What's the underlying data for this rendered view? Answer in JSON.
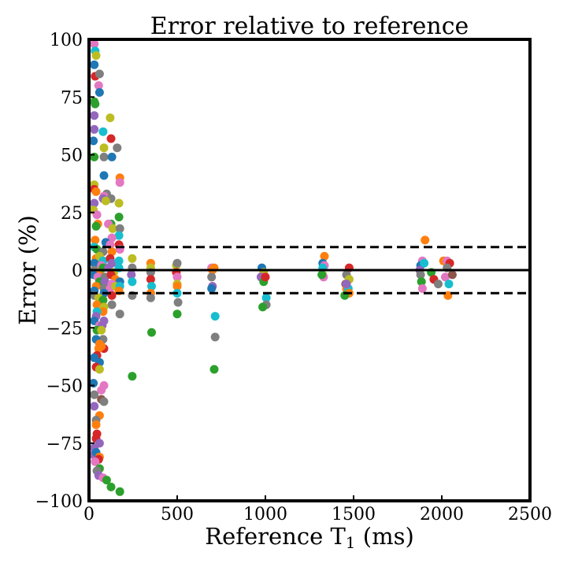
{
  "chart_data": {
    "type": "scatter",
    "title": "Error relative to reference",
    "xlabel": {
      "prefix": "Reference T",
      "subscript": "1",
      "suffix": " (ms)"
    },
    "ylabel": "Error (%)",
    "xlim": [
      0,
      2500
    ],
    "ylim": [
      -100,
      100
    ],
    "xticks": [
      0,
      500,
      1000,
      1500,
      2000,
      2500
    ],
    "xtick_labels": [
      "0",
      "500",
      "1000",
      "1500",
      "2000",
      "2500"
    ],
    "yticks": [
      100,
      75,
      50,
      25,
      0,
      -25,
      -50,
      -75,
      -100
    ],
    "ytick_labels": [
      "100",
      "75",
      "50",
      "25",
      "0",
      "−25",
      "−50",
      "−75",
      "−100"
    ],
    "grid": false,
    "reference_lines": [
      {
        "y": 0,
        "style": "solid"
      },
      {
        "y": 10,
        "style": "dashed"
      },
      {
        "y": -10,
        "style": "dashed"
      }
    ],
    "colors": [
      "#1f77b4",
      "#ff7f0e",
      "#2ca02c",
      "#d62728",
      "#9467bd",
      "#8c564b",
      "#e377c2",
      "#7f7f7f",
      "#bcbd22",
      "#17becf"
    ],
    "points": [
      [
        30,
        98,
        6
      ],
      [
        35,
        95,
        9
      ],
      [
        40,
        93,
        8
      ],
      [
        30,
        89,
        0
      ],
      [
        35,
        84,
        3
      ],
      [
        60,
        85,
        7
      ],
      [
        55,
        80,
        6
      ],
      [
        60,
        77,
        0
      ],
      [
        30,
        73,
        2
      ],
      [
        35,
        72,
        2
      ],
      [
        30,
        67,
        4
      ],
      [
        120,
        66,
        8
      ],
      [
        30,
        61,
        4
      ],
      [
        80,
        60,
        9
      ],
      [
        125,
        57,
        3
      ],
      [
        25,
        56,
        0
      ],
      [
        160,
        53,
        7
      ],
      [
        85,
        53,
        8
      ],
      [
        30,
        49,
        2
      ],
      [
        85,
        49,
        7
      ],
      [
        130,
        49,
        0
      ],
      [
        85,
        41,
        0
      ],
      [
        175,
        40,
        1
      ],
      [
        175,
        38,
        6
      ],
      [
        30,
        37,
        8
      ],
      [
        30,
        35,
        3
      ],
      [
        40,
        34,
        1
      ],
      [
        100,
        33,
        7
      ],
      [
        85,
        32,
        6
      ],
      [
        80,
        31,
        4
      ],
      [
        125,
        31,
        7
      ],
      [
        30,
        29,
        4
      ],
      [
        95,
        30,
        8
      ],
      [
        170,
        29,
        8
      ],
      [
        25,
        26,
        8
      ],
      [
        45,
        24,
        6
      ],
      [
        170,
        23,
        2
      ],
      [
        50,
        20,
        1
      ],
      [
        40,
        19,
        2
      ],
      [
        125,
        20,
        2
      ],
      [
        110,
        20,
        6
      ],
      [
        135,
        18,
        8
      ],
      [
        175,
        18,
        7
      ],
      [
        170,
        15,
        9
      ],
      [
        130,
        14,
        6
      ],
      [
        35,
        13,
        1
      ],
      [
        95,
        12,
        0
      ],
      [
        120,
        11,
        6
      ],
      [
        170,
        11,
        3
      ],
      [
        175,
        9,
        6
      ],
      [
        30,
        10,
        9
      ],
      [
        45,
        9,
        2
      ],
      [
        80,
        8,
        7
      ],
      [
        130,
        8,
        1
      ],
      [
        40,
        5,
        1
      ],
      [
        60,
        6,
        8
      ],
      [
        80,
        4,
        9
      ],
      [
        120,
        5,
        3
      ],
      [
        30,
        3,
        0
      ],
      [
        70,
        2,
        6
      ],
      [
        130,
        3,
        4
      ],
      [
        170,
        4,
        9
      ],
      [
        30,
        0,
        7
      ],
      [
        60,
        -1,
        1
      ],
      [
        80,
        1,
        2
      ],
      [
        110,
        1,
        4
      ],
      [
        140,
        -1,
        8
      ],
      [
        170,
        1,
        9
      ],
      [
        25,
        -2,
        0
      ],
      [
        50,
        -3,
        6
      ],
      [
        90,
        -3,
        7
      ],
      [
        125,
        -2,
        3
      ],
      [
        150,
        -4,
        1
      ],
      [
        60,
        -5,
        2
      ],
      [
        90,
        -5,
        4
      ],
      [
        130,
        -6,
        6
      ],
      [
        175,
        -5,
        0
      ],
      [
        40,
        -7,
        1
      ],
      [
        85,
        -8,
        7
      ],
      [
        120,
        -8,
        6
      ],
      [
        150,
        -7,
        8
      ],
      [
        175,
        -7,
        9
      ],
      [
        30,
        -9,
        0
      ],
      [
        85,
        -10,
        0
      ],
      [
        130,
        -11,
        3
      ],
      [
        170,
        -9,
        1
      ],
      [
        30,
        -11,
        7
      ],
      [
        55,
        -12,
        8
      ],
      [
        80,
        -13,
        2
      ],
      [
        130,
        -15,
        7
      ],
      [
        45,
        -15,
        1
      ],
      [
        85,
        -16,
        8
      ],
      [
        80,
        -18,
        1
      ],
      [
        45,
        -18,
        9
      ],
      [
        40,
        -20,
        4
      ],
      [
        175,
        -19,
        7
      ],
      [
        85,
        -22,
        4
      ],
      [
        30,
        -22,
        0
      ],
      [
        60,
        -24,
        6
      ],
      [
        75,
        -24,
        4
      ],
      [
        45,
        -26,
        2
      ],
      [
        70,
        -26,
        8
      ],
      [
        80,
        -30,
        7
      ],
      [
        40,
        -30,
        0
      ],
      [
        60,
        -32,
        1
      ],
      [
        85,
        -34,
        3
      ],
      [
        55,
        -34,
        1
      ],
      [
        70,
        -33,
        1
      ],
      [
        45,
        -37,
        3
      ],
      [
        30,
        -38,
        0
      ],
      [
        60,
        -40,
        0
      ],
      [
        40,
        -42,
        3
      ],
      [
        60,
        -43,
        8
      ],
      [
        25,
        -49,
        0
      ],
      [
        85,
        -50,
        6
      ],
      [
        70,
        -52,
        6
      ],
      [
        30,
        -54,
        7
      ],
      [
        70,
        -56,
        5
      ],
      [
        85,
        -57,
        7
      ],
      [
        30,
        -59,
        4
      ],
      [
        60,
        -63,
        1
      ],
      [
        40,
        -65,
        7
      ],
      [
        40,
        -67,
        1
      ],
      [
        45,
        -71,
        3
      ],
      [
        40,
        -73,
        3
      ],
      [
        60,
        -75,
        4
      ],
      [
        30,
        -77,
        4
      ],
      [
        25,
        -80,
        4
      ],
      [
        40,
        -79,
        0
      ],
      [
        60,
        -81,
        1
      ],
      [
        55,
        -82,
        3
      ],
      [
        35,
        -83,
        6
      ],
      [
        60,
        -86,
        2
      ],
      [
        45,
        -87,
        7
      ],
      [
        55,
        -89,
        4
      ],
      [
        80,
        -90,
        6
      ],
      [
        100,
        -91,
        2
      ],
      [
        125,
        -94,
        2
      ],
      [
        175,
        -96,
        2
      ],
      [
        245,
        5,
        8
      ],
      [
        245,
        1,
        7
      ],
      [
        240,
        -2,
        4
      ],
      [
        245,
        -5,
        9
      ],
      [
        245,
        -11,
        7
      ],
      [
        245,
        -46,
        2
      ],
      [
        350,
        3,
        1
      ],
      [
        350,
        1,
        8
      ],
      [
        350,
        -1,
        7
      ],
      [
        350,
        -4,
        3
      ],
      [
        355,
        -7,
        9
      ],
      [
        350,
        -10,
        1
      ],
      [
        350,
        -12,
        7
      ],
      [
        355,
        -27,
        2
      ],
      [
        495,
        2,
        8
      ],
      [
        500,
        3,
        7
      ],
      [
        495,
        -1,
        3
      ],
      [
        500,
        -3,
        6
      ],
      [
        500,
        -6,
        8
      ],
      [
        500,
        -7,
        1
      ],
      [
        500,
        -10,
        9
      ],
      [
        505,
        -14,
        7
      ],
      [
        500,
        -19,
        2
      ],
      [
        695,
        1,
        6
      ],
      [
        700,
        0,
        1
      ],
      [
        695,
        -3,
        7
      ],
      [
        700,
        -7,
        4
      ],
      [
        695,
        -8,
        0
      ],
      [
        710,
        1,
        1
      ],
      [
        715,
        -20,
        9
      ],
      [
        715,
        -29,
        7
      ],
      [
        710,
        -43,
        2
      ],
      [
        980,
        1,
        0
      ],
      [
        990,
        -1,
        8
      ],
      [
        975,
        -3,
        4
      ],
      [
        990,
        -5,
        2
      ],
      [
        1000,
        -3,
        3
      ],
      [
        1005,
        -12,
        9
      ],
      [
        1005,
        -15,
        7
      ],
      [
        985,
        -16,
        2
      ],
      [
        1335,
        6,
        1
      ],
      [
        1325,
        3,
        0
      ],
      [
        1335,
        2,
        6
      ],
      [
        1325,
        1,
        9
      ],
      [
        1325,
        -2,
        8
      ],
      [
        1330,
        -3,
        6
      ],
      [
        1320,
        -2,
        2
      ],
      [
        1475,
        1,
        3
      ],
      [
        1460,
        -2,
        7
      ],
      [
        1455,
        -6,
        5
      ],
      [
        1460,
        -8,
        1
      ],
      [
        1470,
        -8,
        9
      ],
      [
        1475,
        -10,
        1
      ],
      [
        1450,
        -11,
        2
      ],
      [
        1475,
        -4,
        8
      ],
      [
        1460,
        -6,
        4
      ],
      [
        1905,
        13,
        1
      ],
      [
        1890,
        4,
        6
      ],
      [
        1880,
        2,
        0
      ],
      [
        1900,
        3,
        9
      ],
      [
        1875,
        0,
        4
      ],
      [
        1880,
        -2,
        7
      ],
      [
        1885,
        -5,
        2
      ],
      [
        1890,
        -8,
        6
      ],
      [
        1940,
        -1,
        2
      ],
      [
        1955,
        -4,
        3
      ],
      [
        1980,
        -6,
        7
      ],
      [
        2010,
        4,
        1
      ],
      [
        2030,
        4,
        6
      ],
      [
        2045,
        3,
        3
      ],
      [
        2030,
        1,
        7
      ],
      [
        2020,
        -3,
        6
      ],
      [
        2060,
        -2,
        5
      ],
      [
        2040,
        -6,
        9
      ],
      [
        2035,
        -11,
        1
      ]
    ]
  }
}
